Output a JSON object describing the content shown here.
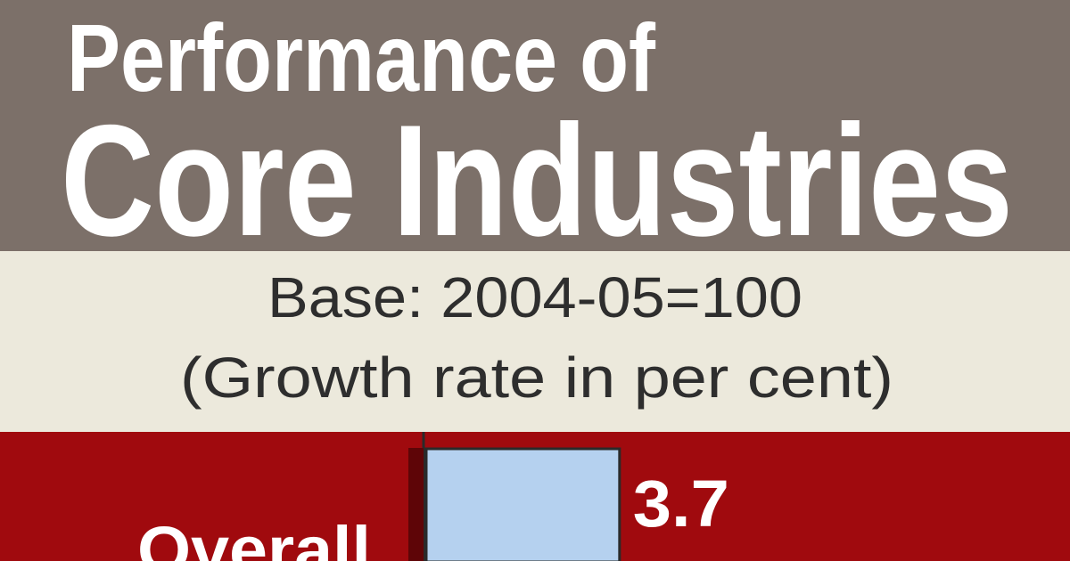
{
  "chart_data": {
    "type": "bar",
    "title": [
      "Performance of",
      "Core Industries"
    ],
    "subtitle": [
      "Base: 2004-05=100",
      "(Growth rate in per cent)"
    ],
    "categories": [
      "Overall"
    ],
    "values": [
      3.7
    ],
    "color": "#b5d1ef"
  }
}
